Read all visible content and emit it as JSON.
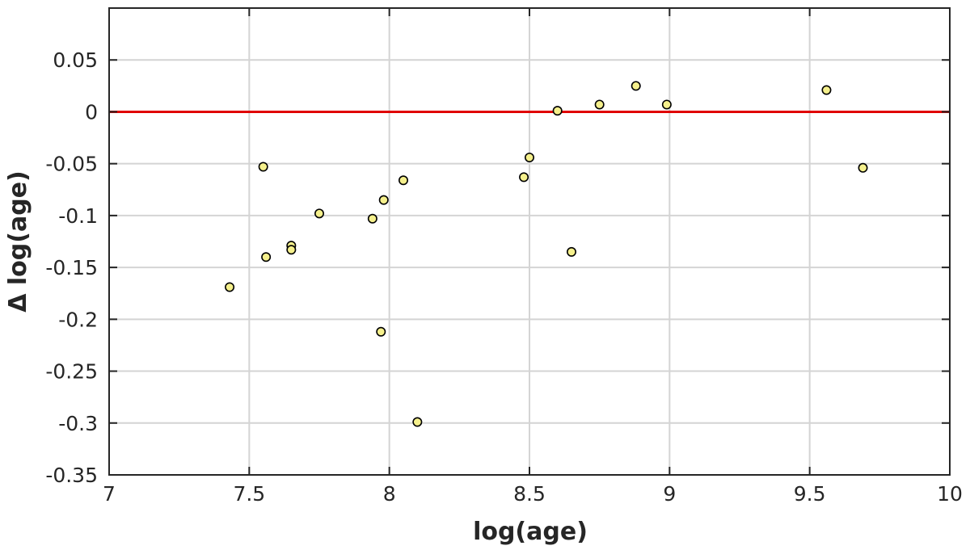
{
  "chart_data": {
    "type": "scatter",
    "title": "",
    "xlabel": "log(age)",
    "ylabel": "Δ log(age)",
    "xlim": [
      7,
      10
    ],
    "ylim": [
      -0.35,
      0.1
    ],
    "xticks": [
      7,
      7.5,
      8,
      8.5,
      9,
      9.5,
      10
    ],
    "xtick_labels": [
      "7",
      "7.5",
      "8",
      "8.5",
      "9",
      "9.5",
      "10"
    ],
    "yticks": [
      0.05,
      0,
      -0.05,
      -0.1,
      -0.15,
      -0.2,
      -0.25,
      -0.3,
      -0.35
    ],
    "ytick_labels": [
      "0.05",
      "0",
      "-0.05",
      "-0.1",
      "-0.15",
      "-0.2",
      "-0.25",
      "-0.3",
      "-0.35"
    ],
    "grid": true,
    "reference_line": {
      "y": 0,
      "color": "#e00000"
    },
    "marker_color": "#f5f08c",
    "marker_edge_color": "#000000",
    "points": [
      {
        "x": 7.43,
        "y": -0.169
      },
      {
        "x": 7.55,
        "y": -0.053
      },
      {
        "x": 7.56,
        "y": -0.14
      },
      {
        "x": 7.65,
        "y": -0.129
      },
      {
        "x": 7.65,
        "y": -0.133
      },
      {
        "x": 7.75,
        "y": -0.098
      },
      {
        "x": 7.94,
        "y": -0.103
      },
      {
        "x": 7.97,
        "y": -0.212
      },
      {
        "x": 7.98,
        "y": -0.085
      },
      {
        "x": 8.05,
        "y": -0.066
      },
      {
        "x": 8.1,
        "y": -0.299
      },
      {
        "x": 8.48,
        "y": -0.063
      },
      {
        "x": 8.5,
        "y": -0.044
      },
      {
        "x": 8.6,
        "y": 0.001
      },
      {
        "x": 8.65,
        "y": -0.135
      },
      {
        "x": 8.75,
        "y": 0.007
      },
      {
        "x": 8.88,
        "y": 0.025
      },
      {
        "x": 8.99,
        "y": 0.007
      },
      {
        "x": 9.56,
        "y": 0.021
      },
      {
        "x": 9.69,
        "y": -0.054
      }
    ]
  }
}
